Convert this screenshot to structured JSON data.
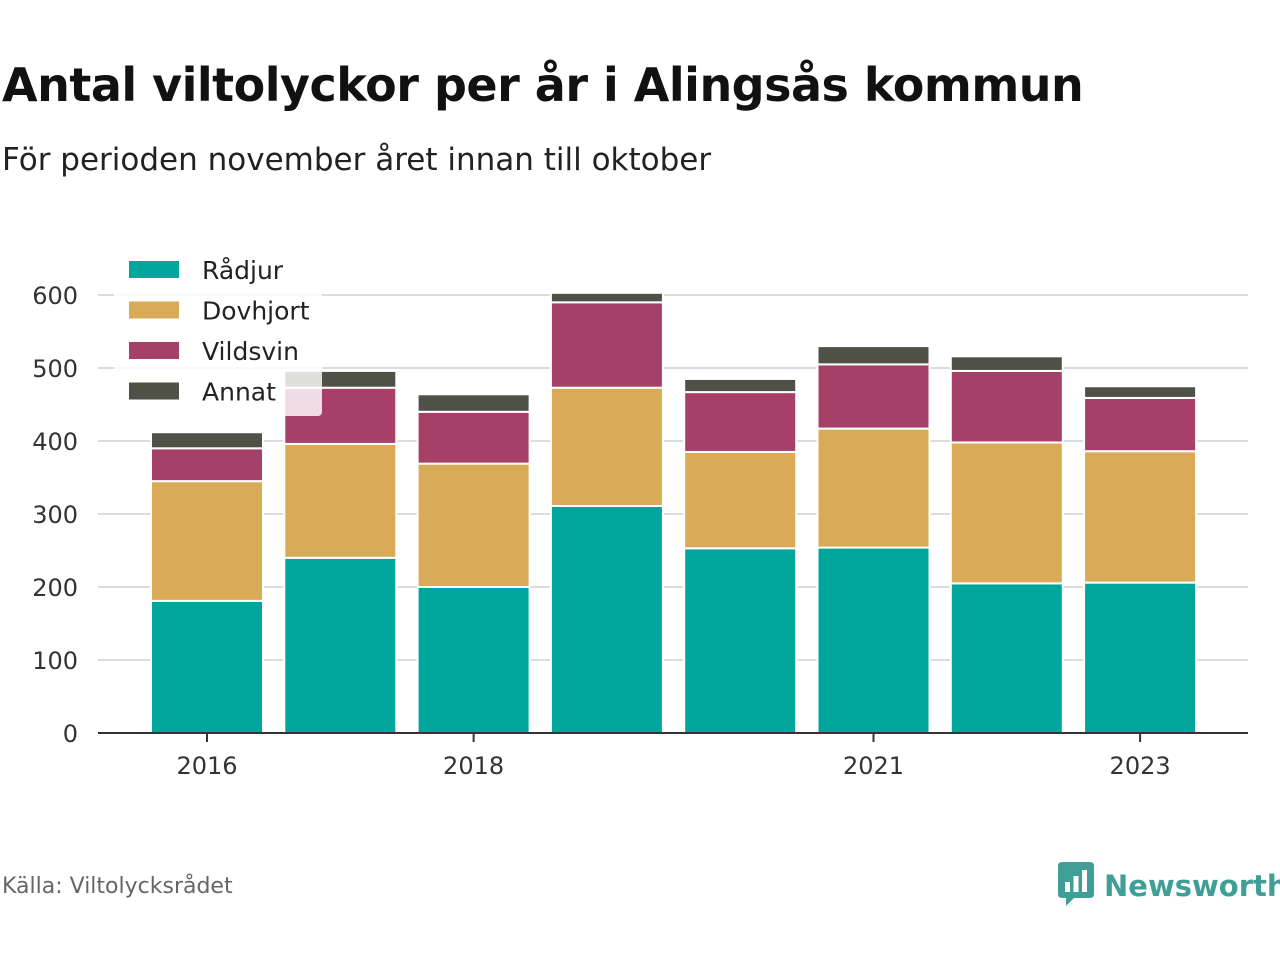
{
  "header": {
    "title": "Antal viltolyckor per år i Alingsås kommun",
    "subtitle": "För perioden november året innan till oktober"
  },
  "footer": {
    "source": "Källa: Viltolycksrådet",
    "brand": "Newsworthy",
    "brand_icon": "bar-chart-speech-bubble-icon"
  },
  "chart_data": {
    "type": "bar",
    "stacked": true,
    "x": [
      2016,
      2017,
      2018,
      2019,
      2020,
      2021,
      2022,
      2023
    ],
    "x_tick_labels": [
      "2016",
      "2018",
      "2021",
      "2023"
    ],
    "y_ticks": [
      "0",
      "100",
      "200",
      "300",
      "400",
      "500",
      "600"
    ],
    "ylim": [
      0,
      600
    ],
    "grid": true,
    "legend_position": "top-left",
    "series": [
      {
        "name": "Rådjur",
        "color": "#00a59b",
        "values": [
          181,
          240,
          200,
          311,
          253,
          254,
          205,
          206
        ]
      },
      {
        "name": "Dovhjort",
        "color": "#d9ab59",
        "values": [
          164,
          156,
          169,
          162,
          132,
          163,
          193,
          180
        ]
      },
      {
        "name": "Vildsvin",
        "color": "#a64068",
        "values": [
          45,
          77,
          71,
          117,
          82,
          88,
          98,
          73
        ]
      },
      {
        "name": "Annat",
        "color": "#4f5146",
        "values": [
          22,
          23,
          24,
          13,
          18,
          25,
          20,
          16
        ]
      }
    ]
  }
}
